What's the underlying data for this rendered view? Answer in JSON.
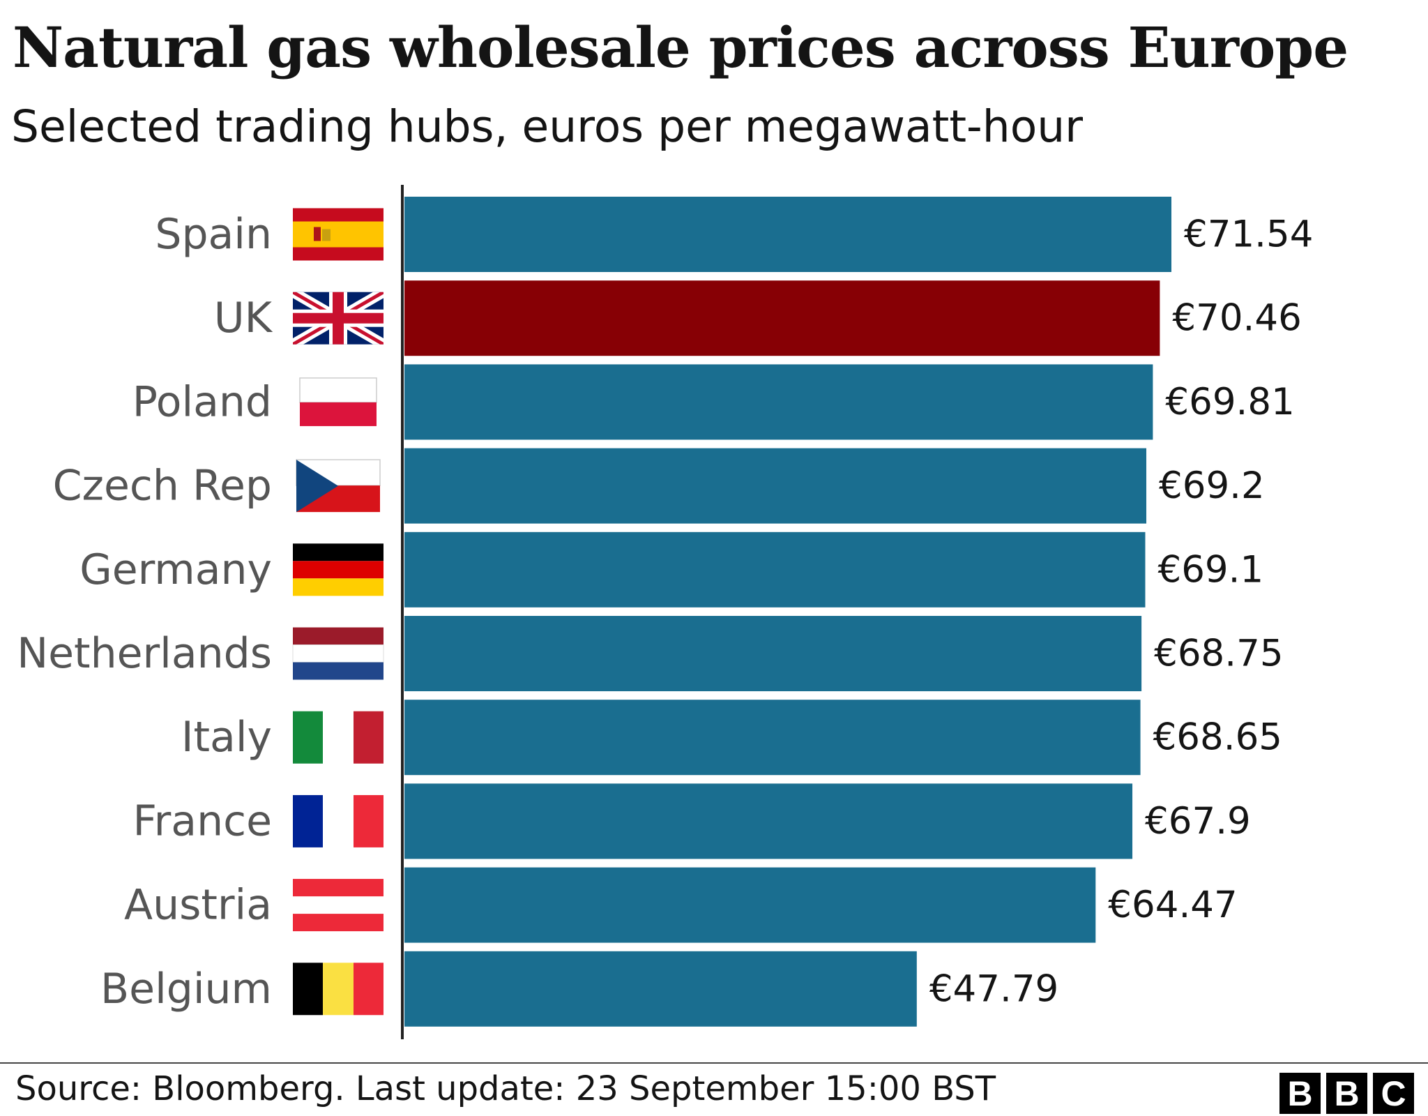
{
  "title": "Natural gas wholesale prices across Europe",
  "subtitle": "Selected trading hubs, euros per megawatt-hour",
  "source": "Source: Bloomberg. Last update: 23 September 15:00 BST",
  "logo": {
    "letters": [
      "B",
      "B",
      "C"
    ],
    "icon": "bbc-logo"
  },
  "colors": {
    "bar": "#1a6e90",
    "highlight": "#870005",
    "axis": "#222222",
    "label": "#555555",
    "value": "#141414"
  },
  "chart_data": {
    "type": "bar",
    "orientation": "horizontal",
    "title": "Natural gas wholesale prices across Europe",
    "subtitle": "Selected trading hubs, euros per megawatt-hour",
    "xlabel": "",
    "ylabel": "",
    "xlim": [
      0,
      71.54
    ],
    "grid": false,
    "legend": "none",
    "categories": [
      "Spain",
      "UK",
      "Poland",
      "Czech Rep",
      "Germany",
      "Netherlands",
      "Italy",
      "France",
      "Austria",
      "Belgium"
    ],
    "values": [
      71.54,
      70.46,
      69.81,
      69.2,
      69.1,
      68.75,
      68.65,
      67.9,
      64.47,
      47.79
    ],
    "value_labels": [
      "€71.54",
      "€70.46",
      "€69.81",
      "€69.2",
      "€69.1",
      "€68.75",
      "€68.65",
      "€67.9",
      "€64.47",
      "€47.79"
    ],
    "highlight": "UK",
    "flags": [
      "flag-spain-icon",
      "flag-uk-icon",
      "flag-poland-icon",
      "flag-czech-icon",
      "flag-germany-icon",
      "flag-netherlands-icon",
      "flag-italy-icon",
      "flag-france-icon",
      "flag-austria-icon",
      "flag-belgium-icon"
    ]
  }
}
